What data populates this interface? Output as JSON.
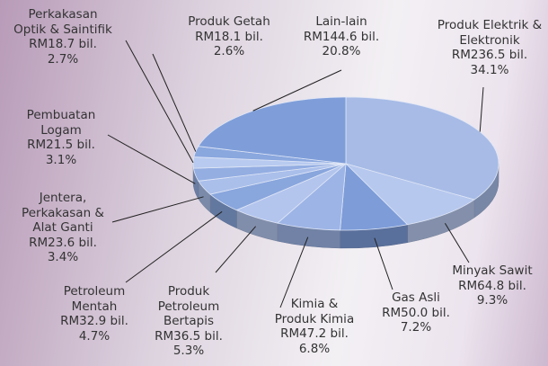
{
  "chart_data": {
    "type": "pie",
    "categories": [
      "Produk Elektrik &\nElektronik",
      "Minyak Sawit",
      "Gas Asli",
      "Kimia &\nProduk Kimia",
      "Produk\nPetroleum\nBertapis",
      "Petroleum\nMentah",
      "Jentera,\nPerkakasan &\nAlat Ganti",
      "Pembuatan\nLogam",
      "Perkakasan\nOptik & Saintifik",
      "Produk Getah",
      "Lain-lain"
    ],
    "amount_labels": [
      "RM236.5 bil.",
      "RM64.8 bil.",
      "RM50.0 bil.",
      "RM47.2 bil.",
      "RM36.5 bil.",
      "RM32.9 bil.",
      "RM23.6 bil.",
      "RM21.5 bil.",
      "RM18.7 bil.",
      "RM18.1 bil.",
      "RM144.6 bil."
    ],
    "values": [
      34.1,
      9.3,
      7.2,
      6.8,
      5.3,
      4.7,
      3.4,
      3.1,
      2.7,
      2.6,
      20.8
    ],
    "value_labels": [
      "34.1%",
      "9.3%",
      "7.2%",
      "6.8%",
      "5.3%",
      "4.7%",
      "3.4%",
      "3.1%",
      "2.7%",
      "2.6%",
      "20.8%"
    ],
    "colors": [
      "#a7bbe6",
      "#b7c8ee",
      "#7d9cd8",
      "#9db4e6",
      "#b3c5ed",
      "#89a6dd",
      "#aabfea",
      "#94aee2",
      "#b8caef",
      "#8aa7de",
      "#7f9ed9"
    ]
  }
}
